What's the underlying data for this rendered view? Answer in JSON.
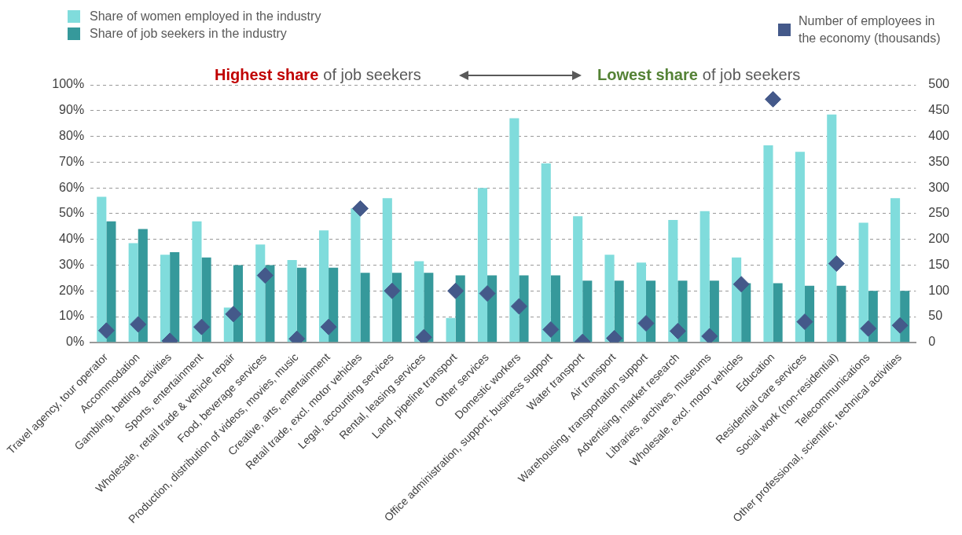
{
  "chart_data": {
    "type": "bar",
    "categories": [
      "Travel agency, tour operator",
      "Accommodation",
      "Gambling, betting activities",
      "Sports, entertainment",
      "Wholesale,  retail trade & vehicle repair",
      "Food, beverage services",
      "Production, distribution of videos, movies, music",
      "Creative, arts, entertainment",
      "Retail trade, excl. motor vehicles",
      "Legal, accounting services",
      "Rental, leasing services",
      "Land, pipeline transport",
      "Other services",
      "Domestic workers",
      "Office administration, support; business support",
      "Water transport",
      "Air transport",
      "Warehousing, transportation support",
      "Advertising, market research",
      "Libraries, archives, museums",
      "Wholesale, excl. motor vehicles",
      "Education",
      "Residential care services",
      "Social work (non-residential)",
      "Telecommunications",
      "Other professional, scientific, technical activities"
    ],
    "series": [
      {
        "name": "Share of women employed in the industry",
        "color": "#80dcdc",
        "values": [
          56.5,
          38.5,
          34,
          47,
          13.5,
          38,
          32,
          43.5,
          52,
          56,
          31.5,
          9.5,
          60,
          87,
          69.5,
          49,
          34,
          31,
          47.5,
          51,
          33,
          76.5,
          74,
          88.5,
          46.5,
          56
        ]
      },
      {
        "name": "Share of job seekers in the industry",
        "color": "#36999b",
        "values": [
          47,
          44,
          35,
          33,
          30,
          30,
          29,
          29,
          27,
          27,
          27,
          26,
          26,
          26,
          26,
          24,
          24,
          24,
          24,
          24,
          23,
          23,
          22,
          22,
          20,
          20
        ]
      },
      {
        "name": "Number of employees in the economy (thousands)",
        "type": "scatter",
        "axis": "y2",
        "color": "#44598a",
        "values": [
          23,
          35,
          3,
          30,
          55,
          130,
          7,
          30,
          260,
          100,
          10,
          100,
          95,
          70,
          25,
          1,
          8,
          37,
          22,
          12,
          113,
          472,
          40,
          153,
          27,
          33
        ]
      }
    ],
    "ylim": [
      0,
      100
    ],
    "yticks": [
      {
        "value": 0,
        "label": "0%"
      },
      {
        "value": 10,
        "label": "10%"
      },
      {
        "value": 20,
        "label": "20%"
      },
      {
        "value": 30,
        "label": "30%"
      },
      {
        "value": 40,
        "label": "40%"
      },
      {
        "value": 50,
        "label": "50%"
      },
      {
        "value": 60,
        "label": "60%"
      },
      {
        "value": 70,
        "label": "70%"
      },
      {
        "value": 80,
        "label": "80%"
      },
      {
        "value": 90,
        "label": "90%"
      },
      {
        "value": 100,
        "label": "100%"
      }
    ],
    "y2lim": [
      0,
      500
    ],
    "y2ticks": [
      0,
      50,
      100,
      150,
      200,
      250,
      300,
      350,
      400,
      450,
      500
    ],
    "grid": "y",
    "line_style": "dashed",
    "marker": "diamond",
    "legend": "top",
    "annotations": [
      "Highest share",
      "of  job seekers",
      "Lowest share",
      "of job seekers"
    ]
  }
}
